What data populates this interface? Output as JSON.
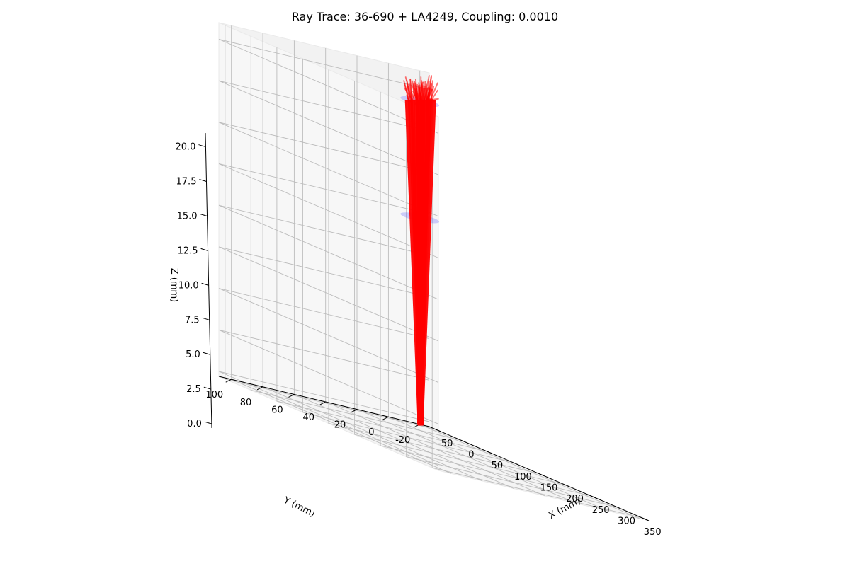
{
  "chart_data": {
    "type": "3d-line",
    "title": "Ray Trace: 36-690 + LA4249, Coupling: 0.0010",
    "xlabel": "X (mm)",
    "ylabel": "Y (mm)",
    "zlabel": "Z (mm)",
    "x_ticks": [
      "-50",
      "0",
      "50",
      "100",
      "150",
      "200",
      "250",
      "300",
      "350"
    ],
    "y_ticks": [
      "-20",
      "0",
      "20",
      "40",
      "60",
      "80",
      "100"
    ],
    "z_ticks": [
      "0.0",
      "2.5",
      "5.0",
      "7.5",
      "10.0",
      "12.5",
      "15.0",
      "17.5",
      "20.0"
    ],
    "xlim": [
      -62,
      362
    ],
    "ylim": [
      -26,
      108
    ],
    "zlim": [
      -0.3,
      21
    ],
    "grid": true,
    "series": [
      {
        "kind": "rays",
        "color": "#ff0000",
        "z_start": 0,
        "z_end": 21,
        "x_center": 0,
        "y_center": 0,
        "spread_end": 6
      },
      {
        "kind": "lens",
        "color": "#3333ff",
        "z": 19.6
      },
      {
        "kind": "lens",
        "color": "#3333ff",
        "z": 12.6
      }
    ]
  }
}
